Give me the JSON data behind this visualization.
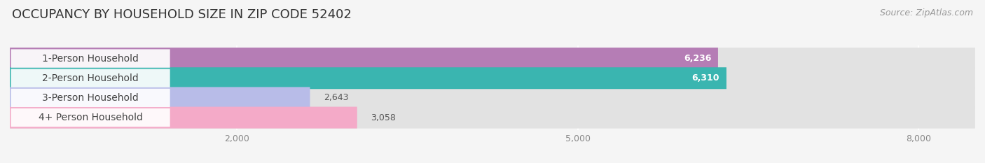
{
  "title": "OCCUPANCY BY HOUSEHOLD SIZE IN ZIP CODE 52402",
  "source": "Source: ZipAtlas.com",
  "categories": [
    "1-Person Household",
    "2-Person Household",
    "3-Person Household",
    "4+ Person Household"
  ],
  "values": [
    6236,
    6310,
    2643,
    3058
  ],
  "bar_colors": [
    "#b57db5",
    "#3ab5b0",
    "#b8bce8",
    "#f4aac8"
  ],
  "xlim_max": 8500,
  "xticks": [
    2000,
    5000,
    8000
  ],
  "xticklabels": [
    "2,000",
    "5,000",
    "8,000"
  ],
  "background_color": "#f5f5f5",
  "bar_bg_color": "#e2e2e2",
  "title_fontsize": 13,
  "source_fontsize": 9,
  "label_fontsize": 10,
  "value_fontsize": 9
}
